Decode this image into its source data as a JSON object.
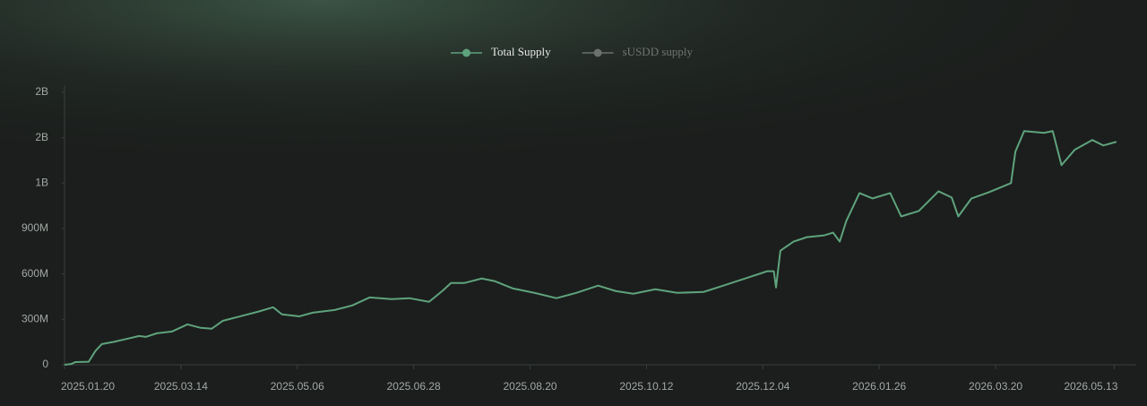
{
  "chart_data": {
    "type": "line",
    "legend": [
      {
        "name": "Total Supply",
        "color": "#5fa37d",
        "active": true
      },
      {
        "name": "sUSDD supply",
        "color": "#6b716d",
        "active": false
      }
    ],
    "x": [
      "2025.01.20",
      "2025.01.23",
      "2025.01.25",
      "2025.01.31",
      "2025.02.03",
      "2025.02.06",
      "2025.02.11",
      "2025.02.17",
      "2025.02.23",
      "2025.02.26",
      "2025.03.03",
      "2025.03.10",
      "2025.03.17",
      "2025.03.23",
      "2025.03.28",
      "2025.04.02",
      "2025.04.10",
      "2025.04.18",
      "2025.04.25",
      "2025.04.29",
      "2025.05.07",
      "2025.05.13",
      "2025.05.23",
      "2025.05.31",
      "2025.06.08",
      "2025.06.18",
      "2025.06.26",
      "2025.07.05",
      "2025.07.11",
      "2025.07.15",
      "2025.07.21",
      "2025.07.29",
      "2025.08.04",
      "2025.08.12",
      "2025.08.22",
      "2025.09.01",
      "2025.09.10",
      "2025.09.20",
      "2025.09.28",
      "2025.10.06",
      "2025.10.16",
      "2025.10.26",
      "2025.11.07",
      "2025.11.16",
      "2025.11.26",
      "2025.12.06",
      "2025.12.09",
      "2025.12.10",
      "2025.12.12",
      "2025.12.18",
      "2025.12.24",
      "2026.01.01",
      "2026.01.05",
      "2026.01.08",
      "2026.01.11",
      "2026.01.17",
      "2026.01.23",
      "2026.01.31",
      "2026.02.05",
      "2026.02.13",
      "2026.02.22",
      "2026.02.28",
      "2026.03.03",
      "2026.03.09",
      "2026.03.17",
      "2026.03.27",
      "2026.03.29",
      "2026.04.02",
      "2026.04.11",
      "2026.04.15",
      "2026.04.19",
      "2026.04.25",
      "2026.05.03",
      "2026.05.08",
      "2026.05.14"
    ],
    "series": [
      {
        "color": "#5fa37d",
        "values": [
          0,
          5000000,
          18000000,
          20000000,
          90000000,
          137000000,
          150000000,
          170000000,
          190000000,
          184000000,
          208000000,
          220000000,
          267000000,
          244000000,
          238000000,
          290000000,
          320000000,
          350000000,
          380000000,
          333000000,
          320000000,
          344000000,
          362000000,
          392000000,
          445000000,
          434000000,
          440000000,
          416000000,
          487000000,
          540000000,
          540000000,
          570000000,
          552000000,
          505000000,
          475000000,
          440000000,
          475000000,
          523000000,
          487000000,
          469000000,
          499000000,
          475000000,
          481000000,
          523000000,
          570000000,
          618000000,
          618000000,
          511000000,
          754000000,
          814000000,
          843000000,
          855000000,
          873000000,
          814000000,
          950000000,
          1134000000,
          1099000000,
          1134000000,
          980000000,
          1016000000,
          1146000000,
          1105000000,
          980000000,
          1099000000,
          1140000000,
          1200000000,
          1408000000,
          1544000000,
          1532000000,
          1544000000,
          1319000000,
          1420000000,
          1485000000,
          1449000000,
          1473000000
        ]
      }
    ],
    "xlim": [
      "2025.01.20",
      "2026.05.21"
    ],
    "xticks": [
      "2025.01.20",
      "2025.03.14",
      "2025.05.06",
      "2025.06.28",
      "2025.08.20",
      "2025.10.12",
      "2025.12.04",
      "2026.01.26",
      "2026.03.20",
      "2026.05.13"
    ],
    "ylim": [
      0,
      1800000000
    ],
    "yticks": [
      0,
      {
        "value": 300000000,
        "label": "300M"
      },
      {
        "value": 600000000,
        "label": "600M"
      },
      {
        "value": 900000000,
        "label": "900M"
      },
      {
        "value": 1200000000,
        "label": "1B"
      },
      {
        "value": 1500000000,
        "label": "2B"
      },
      {
        "value": 1800000000,
        "label": "2B"
      }
    ],
    "grid": false
  }
}
